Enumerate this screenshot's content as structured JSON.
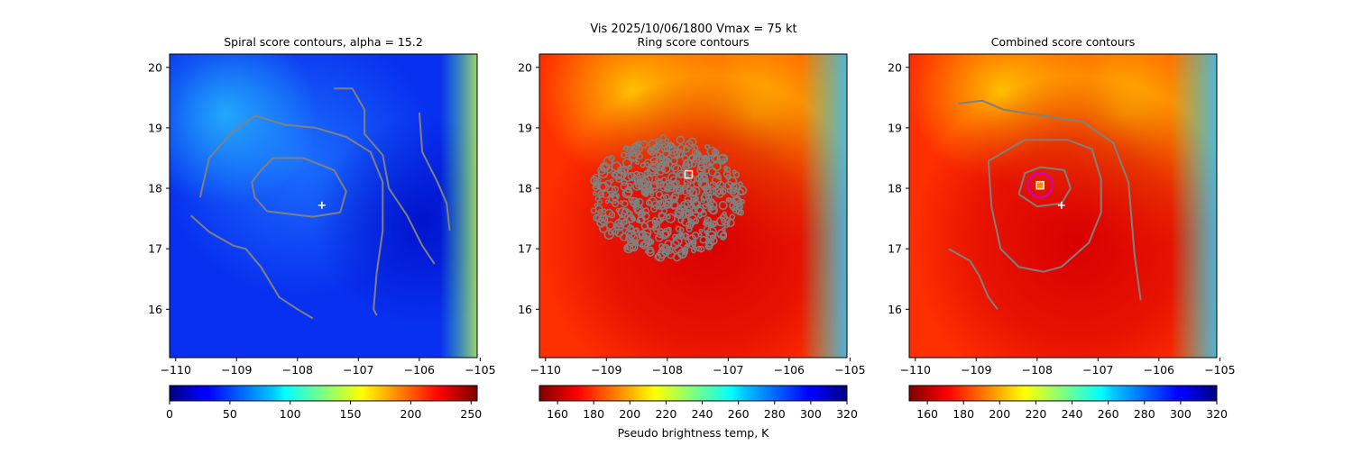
{
  "suptitle": "Vis  2025/10/06/1800    Vmax = 75 kt",
  "colors": {
    "contour": "#808080",
    "marker_white": "#ffffff",
    "circle": "#cc00cc",
    "box_orange": "#ff8c00"
  },
  "chart_data": [
    {
      "type": "heatmap",
      "title": "Spiral score contours, alpha = 15.2",
      "colormap": "jet",
      "x_ticks": [
        "−110",
        "−109",
        "−108",
        "−107",
        "−106",
        "−105"
      ],
      "x_tick_values": [
        -110,
        -109,
        -108,
        -107,
        -106,
        -105
      ],
      "y_ticks": [
        "16",
        "17",
        "18",
        "19",
        "20"
      ],
      "y_tick_values": [
        16,
        17,
        18,
        19,
        20
      ],
      "xlim": [
        -110.1,
        -105.05
      ],
      "ylim": [
        15.2,
        20.22
      ],
      "colorbar": {
        "ticks": [
          "0",
          "50",
          "100",
          "150",
          "200",
          "250"
        ],
        "tick_values": [
          0,
          50,
          100,
          150,
          200,
          250
        ],
        "range": [
          0,
          255
        ],
        "label": "",
        "reversed": false
      },
      "markers": [
        {
          "kind": "plus",
          "lon": -107.6,
          "lat": 17.72
        }
      ],
      "contours": [
        [
          [
            -108.5,
            17.62
          ],
          [
            -107.75,
            17.53
          ],
          [
            -107.3,
            17.6
          ],
          [
            -107.2,
            17.95
          ],
          [
            -107.4,
            18.3
          ],
          [
            -107.9,
            18.5
          ],
          [
            -108.4,
            18.5
          ],
          [
            -108.6,
            18.3
          ],
          [
            -108.75,
            18.1
          ],
          [
            -108.7,
            17.85
          ],
          [
            -108.5,
            17.62
          ]
        ],
        [
          [
            -109.75,
            17.55
          ],
          [
            -109.45,
            17.28
          ],
          [
            -109.05,
            17.05
          ],
          [
            -108.85,
            17.0
          ],
          [
            -108.6,
            16.7
          ],
          [
            -108.3,
            16.2
          ],
          [
            -108.0,
            16.0
          ],
          [
            -107.75,
            15.85
          ]
        ],
        [
          [
            -109.6,
            17.85
          ],
          [
            -109.45,
            18.5
          ],
          [
            -109.1,
            18.9
          ],
          [
            -108.7,
            19.2
          ],
          [
            -108.2,
            19.05
          ],
          [
            -107.7,
            19.0
          ],
          [
            -107.2,
            18.85
          ],
          [
            -106.8,
            18.6
          ],
          [
            -106.6,
            18.1
          ],
          [
            -106.6,
            17.3
          ],
          [
            -106.7,
            16.6
          ],
          [
            -106.75,
            16.0
          ],
          [
            -106.7,
            15.9
          ]
        ],
        [
          [
            -107.4,
            19.65
          ],
          [
            -107.1,
            19.65
          ],
          [
            -106.9,
            19.3
          ],
          [
            -106.9,
            18.9
          ],
          [
            -106.6,
            18.55
          ],
          [
            -106.5,
            18.0
          ],
          [
            -106.2,
            17.55
          ],
          [
            -105.95,
            17.05
          ],
          [
            -105.75,
            16.75
          ]
        ],
        [
          [
            -106.0,
            19.25
          ],
          [
            -105.95,
            18.6
          ],
          [
            -105.7,
            18.1
          ],
          [
            -105.55,
            17.75
          ],
          [
            -105.5,
            17.3
          ]
        ]
      ]
    },
    {
      "type": "heatmap",
      "title": "Ring score contours",
      "colormap": "jet_r",
      "x_ticks": [
        "−110",
        "−109",
        "−108",
        "−107",
        "−106",
        "−105"
      ],
      "x_tick_values": [
        -110,
        -109,
        -108,
        -107,
        -106,
        -105
      ],
      "y_ticks": [
        "16",
        "17",
        "18",
        "19",
        "20"
      ],
      "y_tick_values": [
        16,
        17,
        18,
        19,
        20
      ],
      "xlim": [
        -110.1,
        -105.05
      ],
      "ylim": [
        15.2,
        20.22
      ],
      "colorbar": {
        "ticks": [
          "160",
          "180",
          "200",
          "220",
          "240",
          "260",
          "280",
          "300",
          "320"
        ],
        "tick_values": [
          160,
          180,
          200,
          220,
          240,
          260,
          280,
          300,
          320
        ],
        "range": [
          150,
          320
        ],
        "label": "Pseudo brightness temp, K",
        "reversed": true
      },
      "markers": [
        {
          "kind": "square",
          "lon": -107.65,
          "lat": 18.23
        }
      ],
      "blob_center": [
        -108.0,
        17.85
      ],
      "blob_radius_deg": [
        1.25,
        1.0
      ]
    },
    {
      "type": "heatmap",
      "title": "Combined score contours",
      "colormap": "jet_r",
      "x_ticks": [
        "−110",
        "−109",
        "−108",
        "−107",
        "−106",
        "−105"
      ],
      "x_tick_values": [
        -110,
        -109,
        -108,
        -107,
        -106,
        -105
      ],
      "y_ticks": [
        "16",
        "17",
        "18",
        "19",
        "20"
      ],
      "y_tick_values": [
        16,
        17,
        18,
        19,
        20
      ],
      "xlim": [
        -110.1,
        -105.05
      ],
      "ylim": [
        15.2,
        20.22
      ],
      "colorbar": {
        "ticks": [
          "160",
          "180",
          "200",
          "220",
          "240",
          "260",
          "280",
          "300",
          "320"
        ],
        "tick_values": [
          160,
          180,
          200,
          220,
          240,
          260,
          280,
          300,
          320
        ],
        "range": [
          150,
          320
        ],
        "label": "",
        "reversed": true
      },
      "markers": [
        {
          "kind": "plus",
          "lon": -107.6,
          "lat": 17.72
        },
        {
          "kind": "square",
          "lon": -107.95,
          "lat": 18.05
        },
        {
          "kind": "circle",
          "lon": -107.95,
          "lat": 18.05,
          "r_deg": 0.2
        }
      ],
      "contours": [
        [
          [
            -108.3,
            17.9
          ],
          [
            -108.2,
            18.25
          ],
          [
            -107.95,
            18.35
          ],
          [
            -107.55,
            18.3
          ],
          [
            -107.45,
            18.0
          ],
          [
            -107.6,
            17.75
          ],
          [
            -108.0,
            17.7
          ],
          [
            -108.3,
            17.9
          ]
        ],
        [
          [
            -108.8,
            18.45
          ],
          [
            -108.2,
            18.8
          ],
          [
            -107.5,
            18.8
          ],
          [
            -107.1,
            18.65
          ],
          [
            -106.95,
            18.15
          ],
          [
            -106.95,
            17.6
          ],
          [
            -107.15,
            17.1
          ],
          [
            -107.6,
            16.7
          ],
          [
            -107.9,
            16.62
          ],
          [
            -108.3,
            16.7
          ],
          [
            -108.6,
            17.0
          ],
          [
            -108.75,
            17.7
          ],
          [
            -108.8,
            18.45
          ]
        ],
        [
          [
            -109.3,
            19.4
          ],
          [
            -108.9,
            19.45
          ],
          [
            -108.55,
            19.3
          ],
          [
            -107.9,
            19.2
          ],
          [
            -107.25,
            19.1
          ],
          [
            -106.75,
            18.75
          ],
          [
            -106.5,
            18.1
          ],
          [
            -106.45,
            17.5
          ],
          [
            -106.4,
            16.9
          ],
          [
            -106.3,
            16.15
          ]
        ],
        [
          [
            -109.45,
            17.0
          ],
          [
            -109.1,
            16.8
          ],
          [
            -108.95,
            16.55
          ],
          [
            -108.8,
            16.2
          ],
          [
            -108.65,
            16.0
          ]
        ]
      ]
    }
  ]
}
